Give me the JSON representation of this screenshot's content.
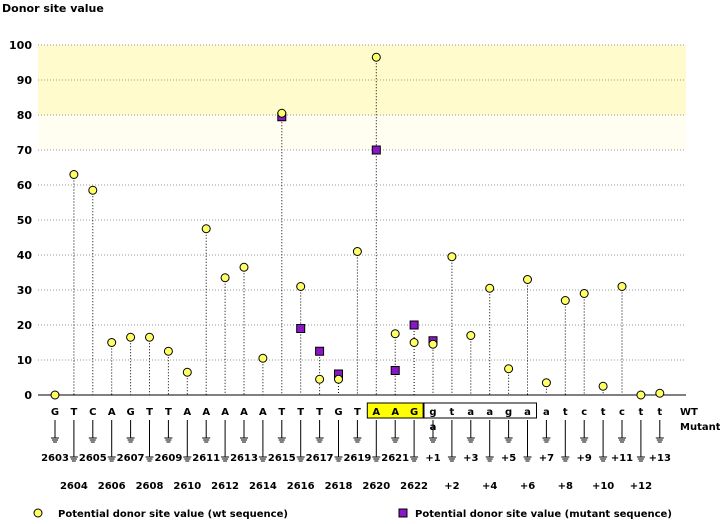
{
  "chart_data": {
    "type": "scatter",
    "ylabel": "Donor site value",
    "ylim": [
      0,
      105
    ],
    "yticks": [
      0,
      10,
      20,
      30,
      40,
      50,
      60,
      70,
      80,
      90,
      100
    ],
    "highlight_band": [
      80,
      100
    ],
    "faint_band": [
      70,
      80
    ],
    "wt_label": "WT",
    "mutant_label": "Mutant",
    "legend": {
      "wt": "Potential donor site value (wt sequence)",
      "mutant": "Potential donor site value (mutant sequence)"
    },
    "colors": {
      "wt_point": "#ffff66",
      "mutant_point": "#8a16c8",
      "band": "#fffbcc",
      "exon_box": "#ffff00",
      "mutant_text": "#000099"
    },
    "positions": [
      {
        "base": "G",
        "label": "2603",
        "wt": 0
      },
      {
        "base": "T",
        "label": "2604",
        "wt": 63
      },
      {
        "base": "C",
        "label": "2605",
        "wt": 58.5
      },
      {
        "base": "A",
        "label": "2606",
        "wt": 15
      },
      {
        "base": "G",
        "label": "2607",
        "wt": 16.5
      },
      {
        "base": "T",
        "label": "2608",
        "wt": 16.5
      },
      {
        "base": "T",
        "label": "2609",
        "wt": 12.5
      },
      {
        "base": "A",
        "label": "2610",
        "wt": 6.5
      },
      {
        "base": "A",
        "label": "2611",
        "wt": 47.5
      },
      {
        "base": "A",
        "label": "2612",
        "wt": 33.5
      },
      {
        "base": "A",
        "label": "2613",
        "wt": 36.5
      },
      {
        "base": "A",
        "label": "2614",
        "wt": 10.5
      },
      {
        "base": "T",
        "label": "2615",
        "wt": 80.5,
        "mut": 79.5
      },
      {
        "base": "T",
        "label": "2616",
        "wt": 31,
        "mut": 19
      },
      {
        "base": "T",
        "label": "2617",
        "wt": 4.5,
        "mut": 12.5
      },
      {
        "base": "G",
        "label": "2618",
        "wt": 4.5,
        "mut": 6
      },
      {
        "base": "T",
        "label": "2619",
        "wt": 41
      },
      {
        "base": "A",
        "label": "2620",
        "wt": 96.5,
        "mut": 70,
        "exon": true
      },
      {
        "base": "A",
        "label": "2621",
        "wt": 17.5,
        "mut": 7,
        "exon": true
      },
      {
        "base": "G",
        "label": "2622",
        "wt": 15,
        "mut": 20,
        "exon": true
      },
      {
        "base": "g",
        "label": "+1",
        "wt": 14.5,
        "mut": 15.5,
        "intron": true,
        "mutant_base": "a"
      },
      {
        "base": "t",
        "label": "+2",
        "wt": 39.5,
        "intron": true
      },
      {
        "base": "a",
        "label": "+3",
        "wt": 17,
        "intron": true
      },
      {
        "base": "a",
        "label": "+4",
        "wt": 30.5,
        "intron": true
      },
      {
        "base": "g",
        "label": "+5",
        "wt": 7.5,
        "intron": true
      },
      {
        "base": "a",
        "label": "+6",
        "wt": 33,
        "intron": true
      },
      {
        "base": "a",
        "label": "+7",
        "wt": 3.5
      },
      {
        "base": "t",
        "label": "+8",
        "wt": 27
      },
      {
        "base": "c",
        "label": "+9",
        "wt": 29
      },
      {
        "base": "t",
        "label": "+10",
        "wt": 2.5
      },
      {
        "base": "c",
        "label": "+11",
        "wt": 31
      },
      {
        "base": "t",
        "label": "+12",
        "wt": 0
      },
      {
        "base": "t",
        "label": "+13",
        "wt": 0.5
      }
    ]
  }
}
